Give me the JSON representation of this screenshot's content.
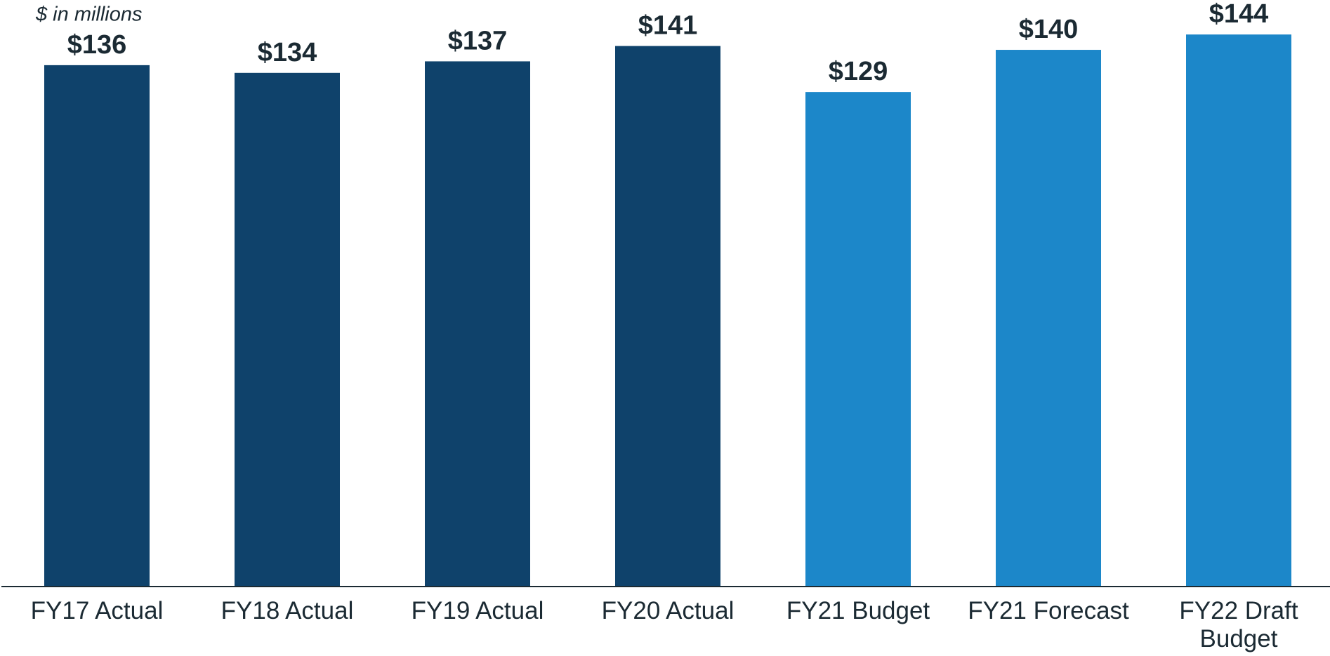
{
  "chart_data": {
    "type": "bar",
    "subtitle": "$ in millions",
    "categories": [
      "FY17 Actual",
      "FY18 Actual",
      "FY19 Actual",
      "FY20 Actual",
      "FY21 Budget",
      "FY21 Forecast",
      "FY22 Draft Budget"
    ],
    "values": [
      136,
      134,
      137,
      141,
      129,
      140,
      144
    ],
    "value_labels": [
      "$136",
      "$134",
      "$137",
      "$141",
      "$129",
      "$140",
      "$144"
    ],
    "colors": [
      "#0f426b",
      "#0f426b",
      "#0f426b",
      "#0f426b",
      "#1c87c9",
      "#1c87c9",
      "#1c87c9"
    ],
    "ylim": [
      0,
      153
    ]
  }
}
